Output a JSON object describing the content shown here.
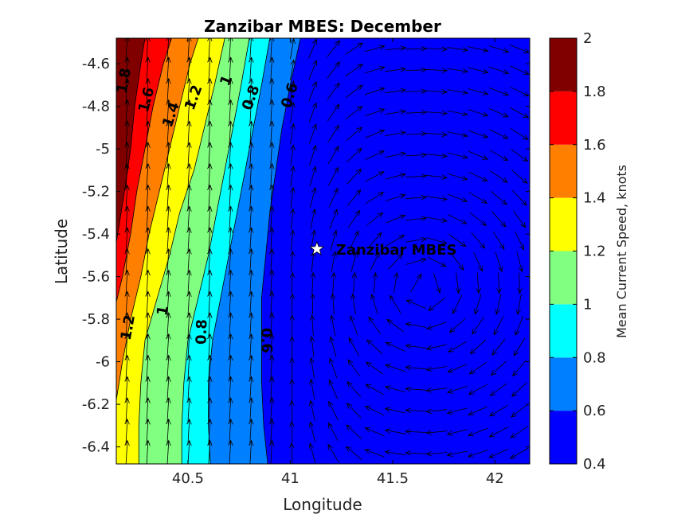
{
  "chart_data": {
    "type": "contour",
    "title": "Zanzibar MBES: December",
    "xlabel": "Longitude",
    "ylabel": "Latitude",
    "xlim": [
      40.15,
      42.17
    ],
    "ylim": [
      -6.48,
      -4.48
    ],
    "xticks": [
      40.5,
      41,
      41.5,
      42
    ],
    "xtick_labels": [
      "40.5",
      "41",
      "41.5",
      "42"
    ],
    "yticks": [
      -4.6,
      -4.8,
      -5,
      -5.2,
      -5.4,
      -5.6,
      -5.8,
      -6,
      -6.2,
      -6.4
    ],
    "ytick_labels": [
      "-4.6",
      "-4.8",
      "-5",
      "-5.2",
      "-5.4",
      "-5.6",
      "-5.8",
      "-6",
      "-6.2",
      "-6.4"
    ],
    "colorbar": {
      "label": "Mean Current Speed, knots",
      "levels": [
        0.4,
        0.6,
        0.8,
        1.0,
        1.2,
        1.4,
        1.6,
        1.8,
        2.0
      ],
      "tick_labels": [
        "0.4",
        "0.6",
        "0.8",
        "1",
        "1.2",
        "1.4",
        "1.6",
        "1.8",
        "2"
      ],
      "colors": [
        "#0000ff",
        "#0080ff",
        "#00ffff",
        "#80ff80",
        "#ffff00",
        "#ff8000",
        "#ff0000",
        "#800000"
      ]
    },
    "bands": [
      {
        "from": 0.4,
        "to": 0.6,
        "color": "#0000ff"
      },
      {
        "from": 0.6,
        "to": 0.8,
        "color": "#0080ff"
      },
      {
        "from": 0.8,
        "to": 1.0,
        "color": "#00ffff"
      },
      {
        "from": 1.0,
        "to": 1.2,
        "color": "#80ff80"
      },
      {
        "from": 1.2,
        "to": 1.4,
        "color": "#ffff00"
      },
      {
        "from": 1.4,
        "to": 1.6,
        "color": "#ff8000"
      },
      {
        "from": 1.6,
        "to": 1.8,
        "color": "#ff0000"
      },
      {
        "from": 1.8,
        "to": 2.0,
        "color": "#800000"
      }
    ],
    "contour_lines": [
      {
        "level": 0.6,
        "label": "0.6",
        "points": [
          [
            40.89,
            -6.48
          ],
          [
            40.87,
            -6.3
          ],
          [
            40.86,
            -6.1
          ],
          [
            40.86,
            -5.9
          ],
          [
            40.86,
            -5.7
          ],
          [
            40.88,
            -5.5
          ],
          [
            40.9,
            -5.3
          ],
          [
            40.93,
            -5.1
          ],
          [
            40.96,
            -4.9
          ],
          [
            41.0,
            -4.7
          ],
          [
            41.05,
            -4.48
          ]
        ]
      },
      {
        "level": 0.8,
        "label": "0.8",
        "points": [
          [
            40.61,
            -6.48
          ],
          [
            40.6,
            -6.3
          ],
          [
            40.6,
            -6.1
          ],
          [
            40.62,
            -5.9
          ],
          [
            40.66,
            -5.7
          ],
          [
            40.7,
            -5.5
          ],
          [
            40.74,
            -5.3
          ],
          [
            40.78,
            -5.1
          ],
          [
            40.82,
            -4.9
          ],
          [
            40.86,
            -4.7
          ],
          [
            40.9,
            -4.48
          ]
        ]
      },
      {
        "level": 1.0,
        "label": "1",
        "points": [
          [
            40.47,
            -6.48
          ],
          [
            40.47,
            -6.3
          ],
          [
            40.48,
            -6.1
          ],
          [
            40.5,
            -5.9
          ],
          [
            40.55,
            -5.7
          ],
          [
            40.6,
            -5.5
          ],
          [
            40.64,
            -5.3
          ],
          [
            40.68,
            -5.1
          ],
          [
            40.72,
            -4.9
          ],
          [
            40.76,
            -4.7
          ],
          [
            40.8,
            -4.48
          ]
        ]
      },
      {
        "level": 1.2,
        "label": "1.2",
        "points": [
          [
            40.26,
            -6.48
          ],
          [
            40.26,
            -6.3
          ],
          [
            40.27,
            -6.1
          ],
          [
            40.29,
            -5.9
          ],
          [
            40.35,
            -5.7
          ],
          [
            40.41,
            -5.5
          ],
          [
            40.46,
            -5.3
          ],
          [
            40.53,
            -5.1
          ],
          [
            40.58,
            -4.9
          ],
          [
            40.63,
            -4.7
          ],
          [
            40.68,
            -4.48
          ]
        ]
      },
      {
        "level": 1.4,
        "label": "1.4",
        "points": [
          [
            40.15,
            -6.18
          ],
          [
            40.18,
            -6.0
          ],
          [
            40.22,
            -5.8
          ],
          [
            40.27,
            -5.6
          ],
          [
            40.31,
            -5.4
          ],
          [
            40.36,
            -5.2
          ],
          [
            40.41,
            -5.0
          ],
          [
            40.46,
            -4.8
          ],
          [
            40.51,
            -4.6
          ],
          [
            40.55,
            -4.48
          ]
        ]
      },
      {
        "level": 1.6,
        "label": "1.6",
        "points": [
          [
            40.15,
            -5.72
          ],
          [
            40.18,
            -5.6
          ],
          [
            40.22,
            -5.4
          ],
          [
            40.25,
            -5.2
          ],
          [
            40.29,
            -5.0
          ],
          [
            40.33,
            -4.8
          ],
          [
            40.38,
            -4.6
          ],
          [
            40.42,
            -4.48
          ]
        ]
      },
      {
        "level": 1.8,
        "label": "1.8",
        "points": [
          [
            40.15,
            -5.44
          ],
          [
            40.19,
            -5.2
          ],
          [
            40.22,
            -5.0
          ],
          [
            40.24,
            -4.8
          ],
          [
            40.27,
            -4.6
          ],
          [
            40.29,
            -4.48
          ]
        ]
      }
    ],
    "contour_labels": [
      {
        "text": "1.8",
        "x": 40.19,
        "y": -4.68,
        "angle": -80
      },
      {
        "text": "1.6",
        "x": 40.3,
        "y": -4.77,
        "angle": -75
      },
      {
        "text": "1.4",
        "x": 40.42,
        "y": -4.84,
        "angle": -72
      },
      {
        "text": "1.2",
        "x": 40.53,
        "y": -4.76,
        "angle": -70
      },
      {
        "text": "1",
        "x": 40.69,
        "y": -4.68,
        "angle": -68
      },
      {
        "text": "0.8",
        "x": 40.81,
        "y": -4.76,
        "angle": -70
      },
      {
        "text": "0.6",
        "x": 41.0,
        "y": -4.75,
        "angle": -72
      },
      {
        "text": "1.2",
        "x": 40.21,
        "y": -5.84,
        "angle": -80
      },
      {
        "text": "1",
        "x": 40.38,
        "y": -5.76,
        "angle": -80
      },
      {
        "text": "0.8",
        "x": 40.57,
        "y": -5.86,
        "angle": -88
      },
      {
        "text": "0.6",
        "x": 40.88,
        "y": -5.9,
        "angle": 88
      }
    ],
    "vector_field": {
      "description": "mean current direction arrows",
      "x_range": [
        40.15,
        42.17
      ],
      "y_range": [
        -6.48,
        -4.48
      ]
    },
    "annotations": [
      {
        "text": "Zanzibar MBES",
        "x": 41.13,
        "y": -5.47,
        "marker": "star"
      }
    ]
  }
}
